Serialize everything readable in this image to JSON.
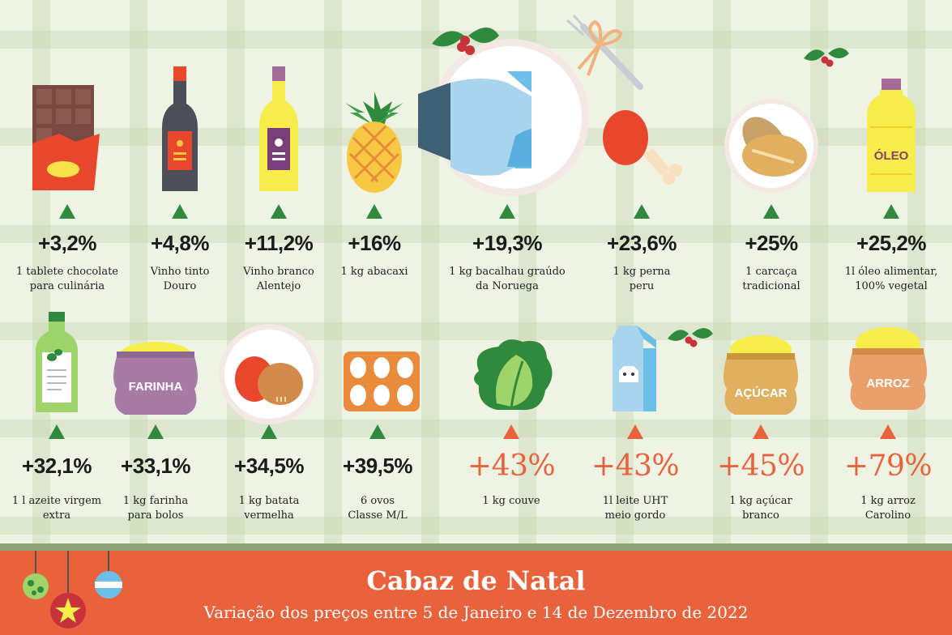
{
  "colors": {
    "background": "#eef3e4",
    "up_green": "#2f8a3e",
    "up_red": "#e9623c",
    "footer": "#e9623c"
  },
  "row1": [
    {
      "pct": "+3,2%",
      "label": [
        "1 tablete chocolate",
        "para culinária"
      ],
      "icon": "chocolate-bar-icon"
    },
    {
      "pct": "+4,8%",
      "label": [
        "Vinho tinto",
        "Douro"
      ],
      "icon": "red-wine-bottle-icon"
    },
    {
      "pct": "+11,2%",
      "label": [
        "Vinho branco",
        "Alentejo"
      ],
      "icon": "white-wine-bottle-icon"
    },
    {
      "pct": "+16%",
      "label": [
        "1 kg abacaxi"
      ],
      "icon": "pineapple-icon"
    },
    {
      "pct": "+19,3%",
      "label": [
        "1 kg bacalhau graúdo",
        "da Noruega"
      ],
      "icon": "codfish-plate-icon"
    },
    {
      "pct": "+23,6%",
      "label": [
        "1 kg perna",
        "peru"
      ],
      "icon": "turkey-leg-icon"
    },
    {
      "pct": "+25%",
      "label": [
        "1 carcaça",
        "tradicional"
      ],
      "icon": "bread-roll-plate-icon"
    },
    {
      "pct": "+25,2%",
      "label": [
        "1l óleo alimentar,",
        "100% vegetal"
      ],
      "icon": "oil-bottle-icon",
      "tag": "ÓLEO"
    }
  ],
  "row2": [
    {
      "pct": "+32,1%",
      "label": [
        "1 l azeite virgem",
        "extra"
      ],
      "icon": "olive-oil-bottle-icon"
    },
    {
      "pct": "+33,1%",
      "label": [
        "1 kg farinha",
        "para bolos"
      ],
      "icon": "flour-sack-icon",
      "tag": "FARINHA"
    },
    {
      "pct": "+34,5%",
      "label": [
        "1 kg batata",
        "vermelha"
      ],
      "icon": "potato-plate-icon"
    },
    {
      "pct": "+39,5%",
      "label": [
        "6 ovos",
        "Classe M/L"
      ],
      "icon": "egg-carton-icon"
    },
    {
      "pct": "+43%",
      "label": [
        "1 kg couve"
      ],
      "icon": "cabbage-icon",
      "highlight": true
    },
    {
      "pct": "+43%",
      "label": [
        "1l leite UHT",
        "meio gordo"
      ],
      "icon": "milk-carton-icon",
      "highlight": true
    },
    {
      "pct": "+45%",
      "label": [
        "1 kg açúcar",
        "branco"
      ],
      "icon": "sugar-sack-icon",
      "tag": "AÇÚCAR",
      "highlight": true
    },
    {
      "pct": "+79%",
      "label": [
        "1 kg arroz",
        "Carolino"
      ],
      "icon": "rice-sack-icon",
      "tag": "ARROZ",
      "highlight": true
    }
  ],
  "footer": {
    "title": "Cabaz de Natal",
    "subtitle": "Variação dos preços entre 5 de Janeiro  e 14 de Dezembro de 2022"
  }
}
